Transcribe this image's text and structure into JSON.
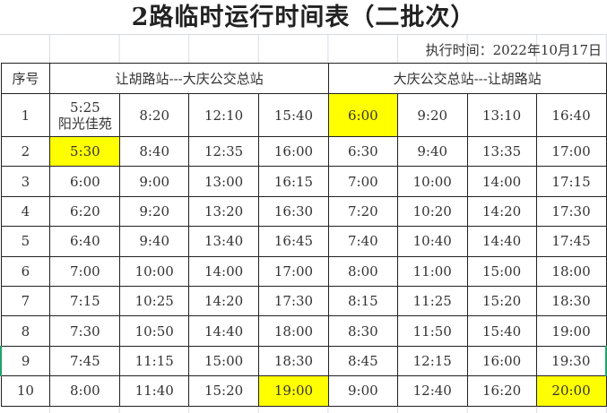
{
  "title": "2路临时运行时间表（二批次）",
  "effective_date": "执行时间：2022年10月17日",
  "header": {
    "seq": "序号",
    "dir1": "让胡路站---大庆公交总站",
    "dir2": "大庆公交总站---让胡路站"
  },
  "highlight_color": "#ffff00",
  "rows": [
    {
      "n": "1",
      "t": [
        "5:25\n阳光佳苑",
        "8:20",
        "12:10",
        "15:40",
        "6:00",
        "9:20",
        "13:10",
        "16:40"
      ],
      "hl": [
        4
      ]
    },
    {
      "n": "2",
      "t": [
        "5:30",
        "8:40",
        "12:35",
        "16:00",
        "6:30",
        "9:40",
        "13:35",
        "17:00"
      ],
      "hl": [
        0
      ]
    },
    {
      "n": "3",
      "t": [
        "6:00",
        "9:00",
        "13:00",
        "16:15",
        "7:00",
        "10:00",
        "14:00",
        "17:15"
      ],
      "hl": []
    },
    {
      "n": "4",
      "t": [
        "6:20",
        "9:20",
        "13:20",
        "16:30",
        "7:20",
        "10:20",
        "14:20",
        "17:30"
      ],
      "hl": []
    },
    {
      "n": "5",
      "t": [
        "6:40",
        "9:40",
        "13:40",
        "16:45",
        "7:40",
        "10:40",
        "14:40",
        "17:45"
      ],
      "hl": []
    },
    {
      "n": "6",
      "t": [
        "7:00",
        "10:00",
        "14:00",
        "17:00",
        "8:00",
        "11:00",
        "15:00",
        "18:00"
      ],
      "hl": []
    },
    {
      "n": "7",
      "t": [
        "7:15",
        "10:25",
        "14:20",
        "17:30",
        "8:15",
        "11:25",
        "15:20",
        "18:30"
      ],
      "hl": []
    },
    {
      "n": "8",
      "t": [
        "7:30",
        "10:50",
        "14:40",
        "18:00",
        "8:30",
        "11:50",
        "15:40",
        "19:00"
      ],
      "hl": []
    },
    {
      "n": "9",
      "t": [
        "7:45",
        "11:15",
        "15:00",
        "18:30",
        "8:45",
        "12:15",
        "16:00",
        "19:30"
      ],
      "hl": []
    },
    {
      "n": "10",
      "t": [
        "8:00",
        "11:40",
        "15:20",
        "19:00",
        "9:00",
        "12:40",
        "16:20",
        "20:00"
      ],
      "hl": [
        3,
        7
      ]
    }
  ]
}
